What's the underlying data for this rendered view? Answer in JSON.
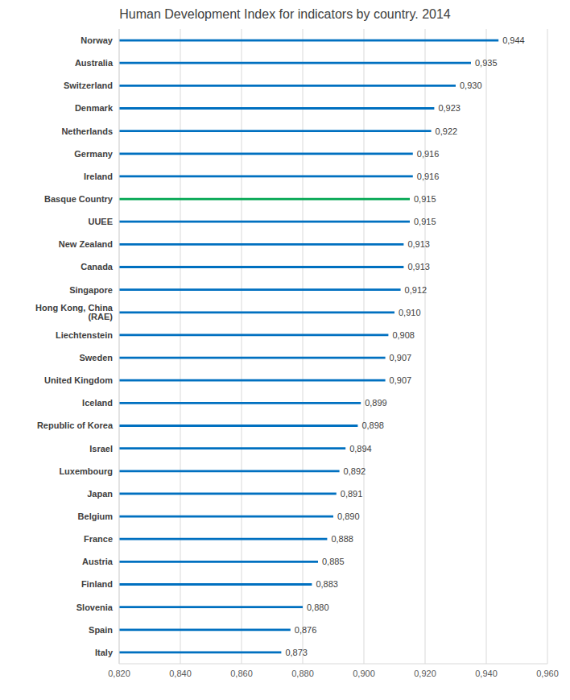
{
  "chart_data": {
    "type": "bar",
    "title": "Human Development Index for indicators by country. 2014",
    "orientation": "horizontal",
    "categories": [
      "Norway",
      "Australia",
      "Switzerland",
      "Denmark",
      "Netherlands",
      "Germany",
      "Ireland",
      "Basque Country",
      "UUEE",
      "New Zealand",
      "Canada",
      "Singapore",
      "Hong Kong, China (RAE)",
      "Liechtenstein",
      "Sweden",
      "United Kingdom",
      "Iceland",
      "Republic of Korea",
      "Israel",
      "Luxembourg",
      "Japan",
      "Belgium",
      "France",
      "Austria",
      "Finland",
      "Slovenia",
      "Spain",
      "Italy"
    ],
    "values": [
      0.944,
      0.935,
      0.93,
      0.923,
      0.922,
      0.916,
      0.916,
      0.915,
      0.915,
      0.913,
      0.913,
      0.912,
      0.91,
      0.908,
      0.907,
      0.907,
      0.899,
      0.898,
      0.894,
      0.892,
      0.891,
      0.89,
      0.888,
      0.885,
      0.883,
      0.88,
      0.876,
      0.873
    ],
    "value_labels": [
      "0,944",
      "0,935",
      "0,930",
      "0,923",
      "0,922",
      "0,916",
      "0,916",
      "0,915",
      "0,915",
      "0,913",
      "0,913",
      "0,912",
      "0,910",
      "0,908",
      "0,907",
      "0,907",
      "0,899",
      "0,898",
      "0,894",
      "0,892",
      "0,891",
      "0,890",
      "0,888",
      "0,885",
      "0,883",
      "0,880",
      "0,876",
      "0,873"
    ],
    "colors": [
      "#0070c0",
      "#0070c0",
      "#0070c0",
      "#0070c0",
      "#0070c0",
      "#0070c0",
      "#0070c0",
      "#00a651",
      "#0070c0",
      "#0070c0",
      "#0070c0",
      "#0070c0",
      "#0070c0",
      "#0070c0",
      "#0070c0",
      "#0070c0",
      "#0070c0",
      "#0070c0",
      "#0070c0",
      "#0070c0",
      "#0070c0",
      "#0070c0",
      "#0070c0",
      "#0070c0",
      "#0070c0",
      "#0070c0",
      "#0070c0",
      "#0070c0"
    ],
    "xlim": [
      0.82,
      0.96
    ],
    "xticks": [
      {
        "value": 0.82,
        "label": "0,820"
      },
      {
        "value": 0.84,
        "label": "0,840"
      },
      {
        "value": 0.86,
        "label": "0,860"
      },
      {
        "value": 0.88,
        "label": "0,880"
      },
      {
        "value": 0.9,
        "label": "0,900"
      },
      {
        "value": 0.92,
        "label": "0,920"
      },
      {
        "value": 0.94,
        "label": "0,940"
      },
      {
        "value": 0.96,
        "label": "0,960"
      }
    ],
    "grid": true,
    "data_labels": true
  }
}
